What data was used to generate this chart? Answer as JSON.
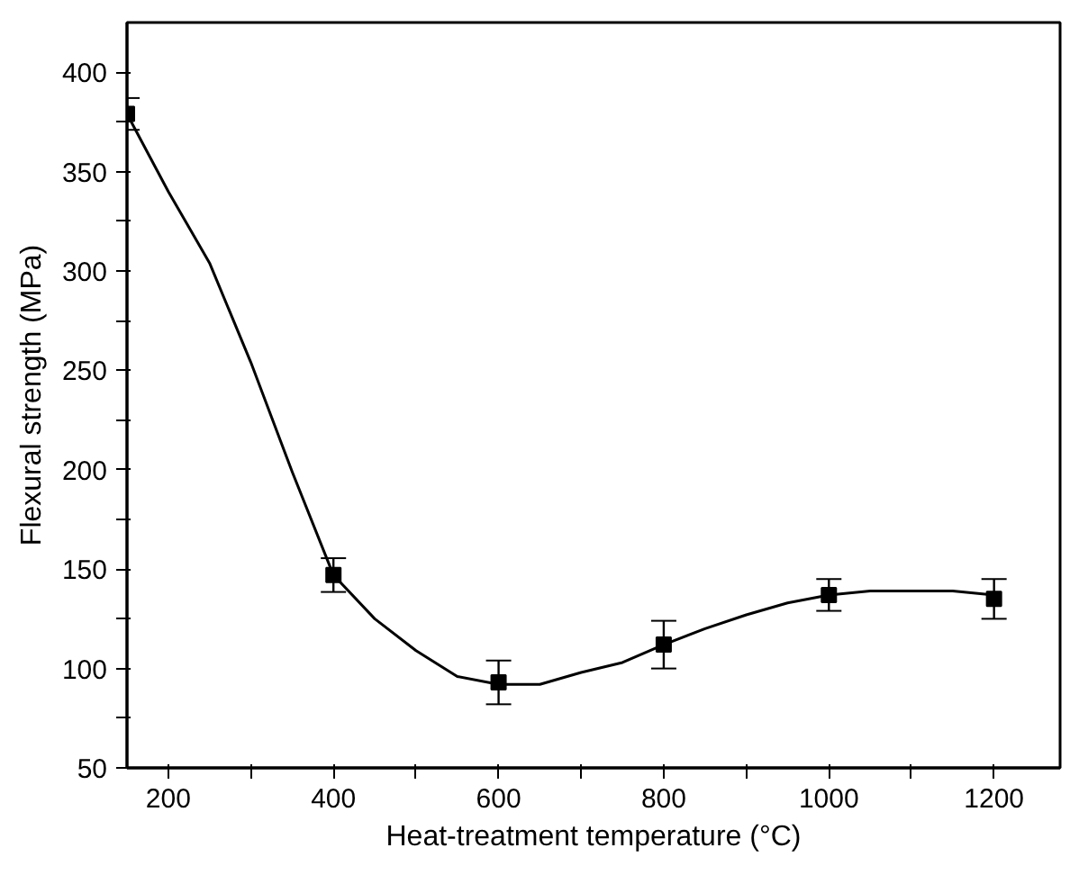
{
  "chart_data": {
    "type": "scatter",
    "xlabel": "Heat-treatment temperature (°C)",
    "ylabel": "Flexural strength (MPa)",
    "xlim": [
      150,
      1280
    ],
    "ylim": [
      50,
      425
    ],
    "xticks": [
      200,
      {
        "value": 300,
        "label": null
      },
      400,
      {
        "value": 500,
        "label": null
      },
      600,
      {
        "value": 700,
        "label": null
      },
      800,
      {
        "value": 900,
        "label": null
      },
      1000,
      {
        "value": 1100,
        "label": null
      },
      1200
    ],
    "yticks": [
      50,
      {
        "value": 75,
        "label": null
      },
      100,
      {
        "value": 125,
        "label": null
      },
      150,
      {
        "value": 175,
        "label": null
      },
      200,
      {
        "value": 225,
        "label": null
      },
      250,
      {
        "value": 275,
        "label": null
      },
      300,
      {
        "value": 325,
        "label": null
      },
      350,
      {
        "value": 375,
        "label": null
      },
      400
    ],
    "grid": false,
    "series": [
      {
        "type": "line",
        "color": "#000000",
        "line_style": "solid",
        "x": [
          150,
          200,
          250,
          300,
          350,
          400,
          450,
          500,
          550,
          600,
          650,
          700,
          750,
          800,
          850,
          900,
          950,
          1000,
          1050,
          1100,
          1150,
          1200
        ],
        "values": [
          379,
          340,
          304,
          254,
          199,
          147,
          125,
          109,
          96,
          92,
          92,
          98,
          103,
          112,
          120,
          127,
          133,
          137,
          139,
          139,
          139,
          137
        ]
      },
      {
        "color": "#000000",
        "marker": "square",
        "x": [
          150,
          400,
          600,
          800,
          1000,
          1200
        ],
        "values": [
          379,
          147,
          93,
          112,
          137,
          135
        ],
        "errors": [
          8,
          8.5,
          11,
          12,
          8,
          10
        ]
      }
    ]
  }
}
